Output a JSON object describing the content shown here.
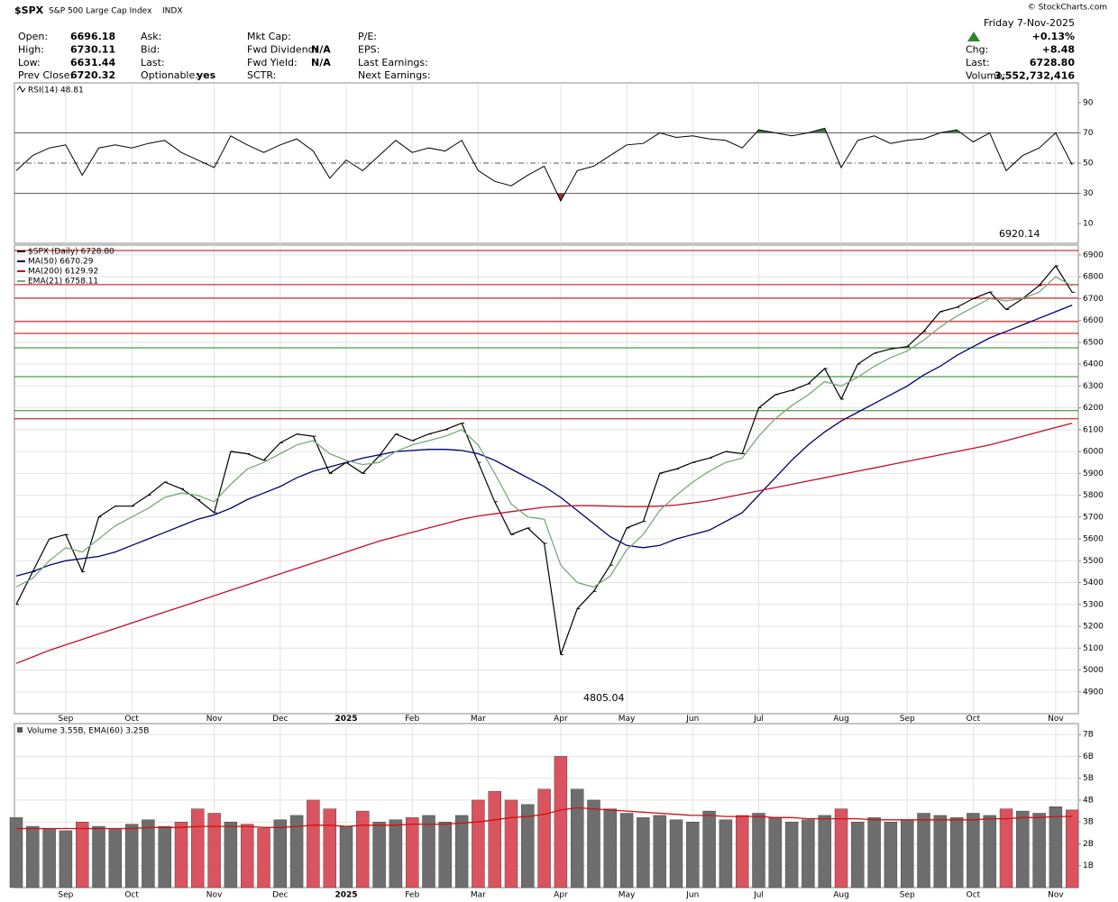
{
  "header": {
    "symbol": "$SPX",
    "name": "S&P 500 Large Cap Index",
    "exchange": "INDX",
    "copyright": "© StockCharts.com",
    "quote_columns": [
      [
        {
          "label": "Open:",
          "value": "6696.18"
        },
        {
          "label": "High:",
          "value": "6730.11"
        },
        {
          "label": "Low:",
          "value": "6631.44"
        },
        {
          "label": "Prev Close:",
          "value": "6720.32"
        }
      ],
      [
        {
          "label": "Ask:"
        },
        {
          "label": "Bid:"
        },
        {
          "label": "Last:"
        },
        {
          "label": "Optionable:",
          "value": "yes"
        }
      ],
      [
        {
          "label": "Mkt Cap:"
        },
        {
          "label": "Fwd Dividend:",
          "value": "N/A"
        },
        {
          "label": "Fwd Yield:",
          "value": "N/A"
        },
        {
          "label": "SCTR:"
        }
      ],
      [
        {
          "label": "P/E:"
        },
        {
          "label": "EPS:"
        },
        {
          "label": "Last Earnings:"
        },
        {
          "label": "Next Earnings:"
        }
      ]
    ],
    "date": "Friday  7-Nov-2025",
    "change_pct": "+0.13%",
    "right_fields": [
      {
        "label": "Chg:",
        "value": "+8.48"
      },
      {
        "label": "Last:",
        "value": "6728.80"
      },
      {
        "label": "Volume:",
        "value": "3,552,732,416"
      }
    ]
  },
  "chart_data": [
    {
      "type": "line",
      "ylim": [
        -3,
        103
      ],
      "yticks": [
        10,
        30,
        50,
        70,
        90
      ],
      "grid": false,
      "reference_lines": [
        {
          "value": 70,
          "style": "solid",
          "fill_above": "#3d7f3d"
        },
        {
          "value": 50,
          "style": "dashdot"
        },
        {
          "value": 30,
          "style": "solid",
          "fill_below": "#9e3333"
        }
      ],
      "series": [
        {
          "name": "RSI(14) 48.81",
          "color": "#000000",
          "values": [
            45,
            55,
            60,
            62,
            42,
            60,
            62,
            60,
            63,
            65,
            57,
            52,
            47,
            68,
            62,
            57,
            62,
            66,
            58,
            40,
            52,
            45,
            55,
            65,
            57,
            60,
            58,
            65,
            45,
            38,
            35,
            42,
            48,
            25,
            45,
            48,
            55,
            62,
            63,
            70,
            67,
            68,
            66,
            65,
            60,
            72,
            70,
            68,
            70,
            73,
            47,
            65,
            68,
            63,
            65,
            66,
            70,
            72,
            64,
            70,
            45,
            55,
            60,
            70,
            48.81
          ]
        }
      ]
    },
    {
      "type": "line",
      "ylim": [
        4800,
        6945
      ],
      "grid": true,
      "yticks": [
        4900,
        5000,
        5100,
        5200,
        5300,
        5400,
        5500,
        5600,
        5700,
        5800,
        5900,
        6000,
        6100,
        6200,
        6300,
        6400,
        6500,
        6600,
        6700,
        6800,
        6900
      ],
      "categories": [
        null,
        null,
        null,
        "Sep",
        null,
        null,
        null,
        "Oct",
        null,
        null,
        null,
        null,
        "Nov",
        null,
        null,
        null,
        "Dec",
        null,
        null,
        null,
        "2025",
        null,
        null,
        null,
        "Feb",
        null,
        null,
        null,
        "Mar",
        null,
        null,
        null,
        null,
        "Apr",
        null,
        null,
        null,
        "May",
        null,
        null,
        null,
        "Jun",
        null,
        null,
        null,
        "Jul",
        null,
        null,
        null,
        null,
        "Aug",
        null,
        null,
        null,
        "Sep",
        null,
        null,
        null,
        "Oct",
        null,
        null,
        null,
        null,
        "Nov",
        null
      ],
      "horizontal_lines": [
        {
          "value": 6920,
          "color": "#c00000"
        },
        {
          "value": 6764,
          "color": "#c00000"
        },
        {
          "value": 6702,
          "color": "#c00000"
        },
        {
          "value": 6595,
          "color": "#c00000"
        },
        {
          "value": 6541,
          "color": "#c00000"
        },
        {
          "value": 6475,
          "color": "#1a8a1a"
        },
        {
          "value": 6343,
          "color": "#1a8a1a"
        },
        {
          "value": 6187,
          "color": "#1a8a1a"
        },
        {
          "value": 6150,
          "color": "#c00000"
        }
      ],
      "annotations": [
        {
          "text": "6920.14",
          "value": 6920.14
        },
        {
          "text": "4805.04",
          "value": 4805.04
        }
      ],
      "series": [
        {
          "name": "$SPX (Daily) 6728.80",
          "color": "#000000",
          "values": [
            5300,
            5450,
            5600,
            5620,
            5450,
            5700,
            5750,
            5750,
            5800,
            5860,
            5830,
            5780,
            5720,
            6000,
            5990,
            5960,
            6040,
            6080,
            6070,
            5900,
            5950,
            5900,
            5980,
            6080,
            6050,
            6080,
            6100,
            6130,
            5950,
            5770,
            5620,
            5650,
            5580,
            5070,
            5280,
            5360,
            5480,
            5650,
            5680,
            5900,
            5920,
            5950,
            5970,
            6000,
            5990,
            6200,
            6260,
            6280,
            6310,
            6380,
            6240,
            6400,
            6450,
            6470,
            6480,
            6550,
            6640,
            6660,
            6700,
            6730,
            6650,
            6700,
            6760,
            6850,
            6728.8
          ]
        },
        {
          "name": "MA(50) 6670.29",
          "color": "#00006e",
          "values": [
            5430,
            5450,
            5480,
            5500,
            5510,
            5520,
            5540,
            5570,
            5600,
            5630,
            5660,
            5690,
            5710,
            5740,
            5780,
            5810,
            5840,
            5880,
            5910,
            5930,
            5950,
            5970,
            5985,
            6000,
            6005,
            6010,
            6010,
            6005,
            5990,
            5960,
            5920,
            5880,
            5840,
            5790,
            5730,
            5670,
            5610,
            5570,
            5560,
            5570,
            5600,
            5620,
            5640,
            5680,
            5720,
            5800,
            5880,
            5960,
            6030,
            6090,
            6140,
            6180,
            6220,
            6260,
            6300,
            6350,
            6390,
            6440,
            6480,
            6520,
            6550,
            6580,
            6610,
            6640,
            6670.29
          ]
        },
        {
          "name": "MA(200) 6129.92",
          "color": "#c0102a",
          "values": [
            5030,
            5060,
            5090,
            5115,
            5140,
            5165,
            5190,
            5215,
            5240,
            5265,
            5290,
            5315,
            5340,
            5365,
            5390,
            5415,
            5440,
            5465,
            5490,
            5515,
            5540,
            5565,
            5590,
            5610,
            5630,
            5650,
            5670,
            5690,
            5705,
            5715,
            5725,
            5735,
            5745,
            5750,
            5752,
            5752,
            5750,
            5748,
            5748,
            5750,
            5755,
            5765,
            5775,
            5790,
            5805,
            5820,
            5835,
            5850,
            5865,
            5880,
            5895,
            5910,
            5925,
            5940,
            5955,
            5970,
            5985,
            6000,
            6015,
            6030,
            6050,
            6070,
            6090,
            6110,
            6129.92
          ]
        },
        {
          "name": "EMA(21) 6758.11",
          "color": "#7aa87a",
          "values": [
            5380,
            5420,
            5500,
            5560,
            5540,
            5600,
            5660,
            5700,
            5740,
            5790,
            5810,
            5800,
            5770,
            5850,
            5920,
            5950,
            5990,
            6030,
            6050,
            5990,
            5960,
            5940,
            5950,
            6000,
            6030,
            6050,
            6070,
            6100,
            6030,
            5900,
            5760,
            5700,
            5690,
            5480,
            5400,
            5380,
            5430,
            5550,
            5620,
            5730,
            5800,
            5860,
            5910,
            5950,
            5970,
            6070,
            6150,
            6210,
            6260,
            6320,
            6300,
            6340,
            6390,
            6430,
            6460,
            6510,
            6570,
            6620,
            6660,
            6700,
            6690,
            6700,
            6730,
            6800,
            6758.11
          ]
        }
      ]
    },
    {
      "type": "bar",
      "title": "Volume 3.55B, EMA(60) 3.25B",
      "ylim": [
        0,
        7.5
      ],
      "grid": true,
      "yticks": [
        {
          "value": 1,
          "label": "1B"
        },
        {
          "value": 2,
          "label": "2B"
        },
        {
          "value": 3,
          "label": "3B"
        },
        {
          "value": 4,
          "label": "4B"
        },
        {
          "value": 5,
          "label": "5B"
        },
        {
          "value": 6,
          "label": "6B"
        },
        {
          "value": 7,
          "label": "7B"
        }
      ],
      "categories": [
        null,
        null,
        null,
        "Sep",
        null,
        null,
        null,
        "Oct",
        null,
        null,
        null,
        null,
        "Nov",
        null,
        null,
        null,
        "Dec",
        null,
        null,
        null,
        "2025",
        null,
        null,
        null,
        "Feb",
        null,
        null,
        null,
        "Mar",
        null,
        null,
        null,
        null,
        "Apr",
        null,
        null,
        null,
        "May",
        null,
        null,
        null,
        "Jun",
        null,
        null,
        null,
        "Jul",
        null,
        null,
        null,
        null,
        "Aug",
        null,
        null,
        null,
        "Sep",
        null,
        null,
        null,
        "Oct",
        null,
        null,
        null,
        null,
        "Nov",
        null
      ],
      "color": "#6e6e6e",
      "down_color": "#d9545f",
      "series": [
        {
          "type": "bar",
          "values": [
            3.2,
            2.8,
            2.7,
            2.6,
            3.0,
            2.8,
            2.7,
            2.9,
            3.1,
            2.8,
            3.0,
            3.6,
            3.4,
            3.0,
            2.9,
            2.7,
            3.1,
            3.3,
            4.0,
            3.6,
            2.8,
            3.5,
            3.0,
            3.1,
            3.2,
            3.3,
            3.0,
            3.3,
            4.0,
            4.4,
            4.0,
            3.8,
            4.5,
            6.0,
            4.5,
            4.0,
            3.6,
            3.4,
            3.2,
            3.3,
            3.1,
            3.0,
            3.5,
            3.1,
            3.3,
            3.4,
            3.2,
            3.0,
            3.1,
            3.3,
            3.6,
            3.0,
            3.2,
            3.0,
            3.1,
            3.4,
            3.3,
            3.2,
            3.4,
            3.3,
            3.6,
            3.5,
            3.4,
            3.7,
            3.55
          ]
        },
        {
          "type": "line",
          "color": "#d01010",
          "values": [
            2.7,
            2.7,
            2.7,
            2.7,
            2.7,
            2.7,
            2.7,
            2.7,
            2.75,
            2.75,
            2.75,
            2.8,
            2.8,
            2.8,
            2.8,
            2.75,
            2.75,
            2.8,
            2.85,
            2.85,
            2.8,
            2.85,
            2.85,
            2.85,
            2.9,
            2.9,
            2.9,
            2.95,
            3.0,
            3.1,
            3.2,
            3.25,
            3.35,
            3.55,
            3.65,
            3.6,
            3.55,
            3.5,
            3.45,
            3.4,
            3.35,
            3.3,
            3.3,
            3.25,
            3.25,
            3.25,
            3.2,
            3.2,
            3.15,
            3.15,
            3.15,
            3.15,
            3.1,
            3.1,
            3.1,
            3.1,
            3.1,
            3.1,
            3.1,
            3.15,
            3.15,
            3.2,
            3.2,
            3.25,
            3.25
          ]
        }
      ]
    }
  ]
}
